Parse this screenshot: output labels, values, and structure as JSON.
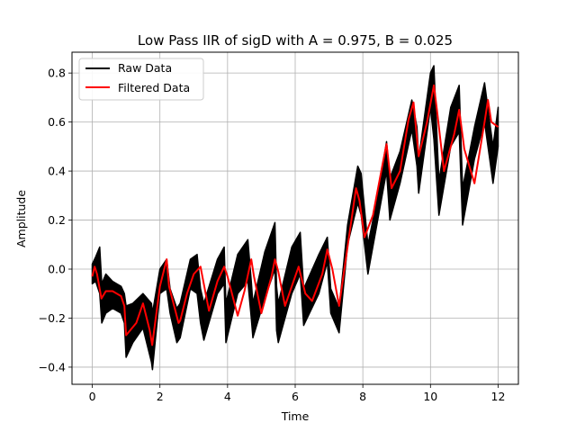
{
  "chart_data": {
    "type": "line",
    "title": "Low Pass IIR of sigD with A = 0.975, B = 0.025",
    "xlabel": "Time",
    "ylabel": "Amplitude",
    "xlim": [
      -0.6,
      12.6
    ],
    "ylim": [
      -0.47,
      0.885
    ],
    "xticks": [
      0,
      2,
      4,
      6,
      8,
      10,
      12
    ],
    "yticks": [
      -0.4,
      -0.2,
      0.0,
      0.2,
      0.4,
      0.6,
      0.8
    ],
    "ytick_labels": [
      "−0.4",
      "−0.2",
      "0.0",
      "0.2",
      "0.4",
      "0.6",
      "0.8"
    ],
    "grid": true,
    "legend_position": "upper-left",
    "series": [
      {
        "name": "Raw Data",
        "color": "#000000",
        "band": true,
        "x": [
          0.0,
          0.1,
          0.22,
          0.28,
          0.4,
          0.6,
          0.85,
          0.95,
          1.0,
          1.2,
          1.5,
          1.75,
          1.78,
          2.0,
          2.2,
          2.3,
          2.5,
          2.6,
          2.9,
          3.1,
          3.2,
          3.3,
          3.7,
          3.9,
          3.95,
          4.3,
          4.6,
          4.7,
          4.75,
          5.1,
          5.4,
          5.45,
          5.5,
          5.9,
          6.15,
          6.25,
          6.7,
          6.95,
          7.05,
          7.3,
          7.55,
          7.85,
          7.95,
          8.15,
          8.4,
          8.7,
          8.8,
          9.1,
          9.45,
          9.6,
          9.65,
          10.0,
          10.1,
          10.25,
          10.6,
          10.85,
          10.95,
          11.3,
          11.6,
          11.75,
          11.85,
          12.0
        ],
        "lower": [
          -0.06,
          -0.05,
          -0.1,
          -0.22,
          -0.18,
          -0.16,
          -0.18,
          -0.22,
          -0.36,
          -0.3,
          -0.24,
          -0.38,
          -0.41,
          -0.1,
          -0.08,
          -0.18,
          -0.3,
          -0.28,
          -0.08,
          -0.1,
          -0.22,
          -0.29,
          -0.1,
          -0.06,
          -0.3,
          -0.1,
          -0.05,
          -0.2,
          -0.28,
          -0.12,
          0.0,
          -0.25,
          -0.3,
          -0.1,
          -0.02,
          -0.23,
          -0.1,
          0.03,
          -0.18,
          -0.26,
          0.1,
          0.27,
          0.22,
          -0.02,
          0.17,
          0.4,
          0.2,
          0.35,
          0.57,
          0.42,
          0.31,
          0.66,
          0.53,
          0.22,
          0.5,
          0.56,
          0.18,
          0.45,
          0.6,
          0.45,
          0.35,
          0.5
        ],
        "upper": [
          0.02,
          0.05,
          0.09,
          -0.06,
          -0.02,
          -0.05,
          -0.07,
          -0.1,
          -0.15,
          -0.14,
          -0.1,
          -0.14,
          -0.18,
          0.0,
          0.04,
          -0.08,
          -0.16,
          -0.14,
          0.04,
          0.06,
          -0.08,
          -0.14,
          0.04,
          0.09,
          -0.14,
          0.06,
          0.12,
          -0.05,
          -0.14,
          0.07,
          0.19,
          -0.07,
          -0.14,
          0.09,
          0.15,
          -0.08,
          0.06,
          0.13,
          -0.08,
          -0.16,
          0.18,
          0.42,
          0.39,
          0.1,
          0.27,
          0.52,
          0.37,
          0.48,
          0.69,
          0.58,
          0.45,
          0.8,
          0.83,
          0.36,
          0.66,
          0.75,
          0.33,
          0.58,
          0.76,
          0.6,
          0.5,
          0.66
        ]
      },
      {
        "name": "Filtered Data",
        "color": "#ff0000",
        "x": [
          0.0,
          0.07,
          0.14,
          0.27,
          0.4,
          0.6,
          0.85,
          0.95,
          1.0,
          1.3,
          1.5,
          1.7,
          1.77,
          2.0,
          2.2,
          2.27,
          2.55,
          2.6,
          2.8,
          3.0,
          3.2,
          3.27,
          3.45,
          3.7,
          3.9,
          4.0,
          4.3,
          4.5,
          4.7,
          4.78,
          5.0,
          5.3,
          5.4,
          5.5,
          5.7,
          5.95,
          6.1,
          6.3,
          6.5,
          6.8,
          6.95,
          7.1,
          7.3,
          7.6,
          7.8,
          7.9,
          8.05,
          8.3,
          8.6,
          8.7,
          8.85,
          9.1,
          9.35,
          9.5,
          9.65,
          9.9,
          10.1,
          10.2,
          10.4,
          10.7,
          10.85,
          11.0,
          11.3,
          11.6,
          11.7,
          11.8,
          12.0
        ],
        "y": [
          -0.03,
          0.01,
          -0.02,
          -0.12,
          -0.09,
          -0.09,
          -0.11,
          -0.15,
          -0.27,
          -0.22,
          -0.14,
          -0.25,
          -0.31,
          -0.07,
          0.04,
          -0.07,
          -0.22,
          -0.21,
          -0.1,
          -0.02,
          0.01,
          -0.04,
          -0.17,
          -0.05,
          0.01,
          -0.03,
          -0.19,
          -0.09,
          0.04,
          -0.03,
          -0.18,
          -0.03,
          0.04,
          -0.01,
          -0.15,
          -0.05,
          0.01,
          -0.1,
          -0.13,
          -0.02,
          0.08,
          0.0,
          -0.15,
          0.14,
          0.33,
          0.28,
          0.13,
          0.22,
          0.44,
          0.51,
          0.33,
          0.4,
          0.61,
          0.68,
          0.46,
          0.6,
          0.75,
          0.64,
          0.4,
          0.55,
          0.65,
          0.49,
          0.35,
          0.6,
          0.69,
          0.6,
          0.58
        ]
      }
    ]
  }
}
